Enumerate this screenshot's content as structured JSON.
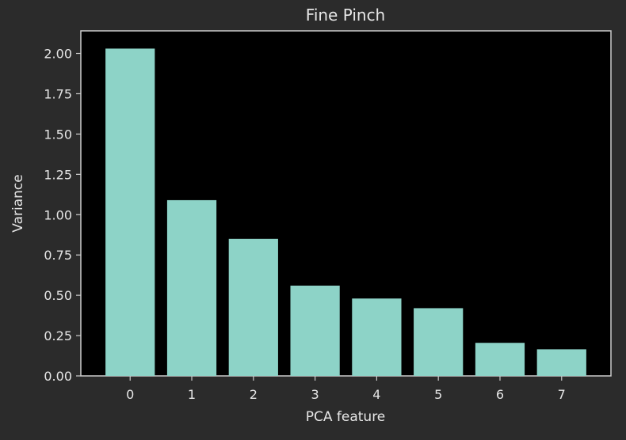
{
  "chart_data": {
    "type": "bar",
    "title": "Fine Pinch",
    "xlabel": "PCA feature",
    "ylabel": "Variance",
    "categories": [
      "0",
      "1",
      "2",
      "3",
      "4",
      "5",
      "6",
      "7"
    ],
    "values": [
      2.03,
      1.09,
      0.85,
      0.56,
      0.48,
      0.42,
      0.205,
      0.165
    ],
    "ylim": [
      0,
      2.14
    ],
    "yticks": [
      "0.00",
      "0.25",
      "0.50",
      "0.75",
      "1.00",
      "1.25",
      "1.50",
      "1.75",
      "2.00"
    ],
    "ytick_values": [
      0,
      0.25,
      0.5,
      0.75,
      1.0,
      1.25,
      1.5,
      1.75,
      2.0
    ],
    "grid": false,
    "colors": {
      "figure_bg": "#2b2b2b",
      "plot_bg": "#000000",
      "bar": "#8dd3c7",
      "text": "#e6e6e6",
      "axis": "#cccccc"
    }
  }
}
